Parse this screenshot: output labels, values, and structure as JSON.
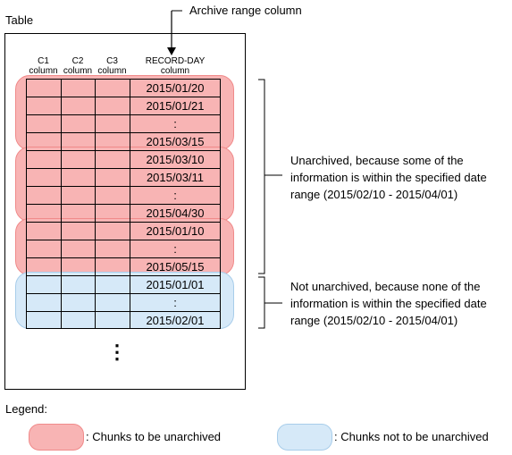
{
  "table_title": "Table",
  "archive_label": "Archive range column",
  "columns": [
    {
      "line1": "C1",
      "line2": "column"
    },
    {
      "line1": "C2",
      "line2": "column"
    },
    {
      "line1": "C3",
      "line2": "column"
    },
    {
      "line1": "RECORD-DAY",
      "line2": "column"
    }
  ],
  "rows": [
    "2015/01/20",
    "2015/01/21",
    ":",
    "2015/03/15",
    "2015/03/10",
    "2015/03/11",
    ":",
    "2015/04/30",
    "2015/01/10",
    ":",
    "2015/05/15",
    "2015/01/01",
    ":",
    "2015/02/01"
  ],
  "chunks": [
    {
      "kind": "unarchived",
      "rows": 4
    },
    {
      "kind": "unarchived",
      "rows": 4
    },
    {
      "kind": "unarchived",
      "rows": 3
    },
    {
      "kind": "not-unarchived",
      "rows": 3
    }
  ],
  "continuation": "⋮",
  "annotations": {
    "unarchived": [
      "Unarchived, because some of the",
      "information is within the specified date",
      "range (2015/02/10 - 2015/04/01)"
    ],
    "not_unarchived": [
      "Not unarchived, because none of the",
      "information is within the specified date",
      "range (2015/02/10 - 2015/04/01)"
    ]
  },
  "legend": {
    "title": "Legend:",
    "unarchived": ": Chunks to be unarchived",
    "not_unarchived": ": Chunks not to be unarchived"
  },
  "colors": {
    "unarchived_fill": "#f8b4b4",
    "not_unarchived_fill": "#d6e9f8"
  }
}
